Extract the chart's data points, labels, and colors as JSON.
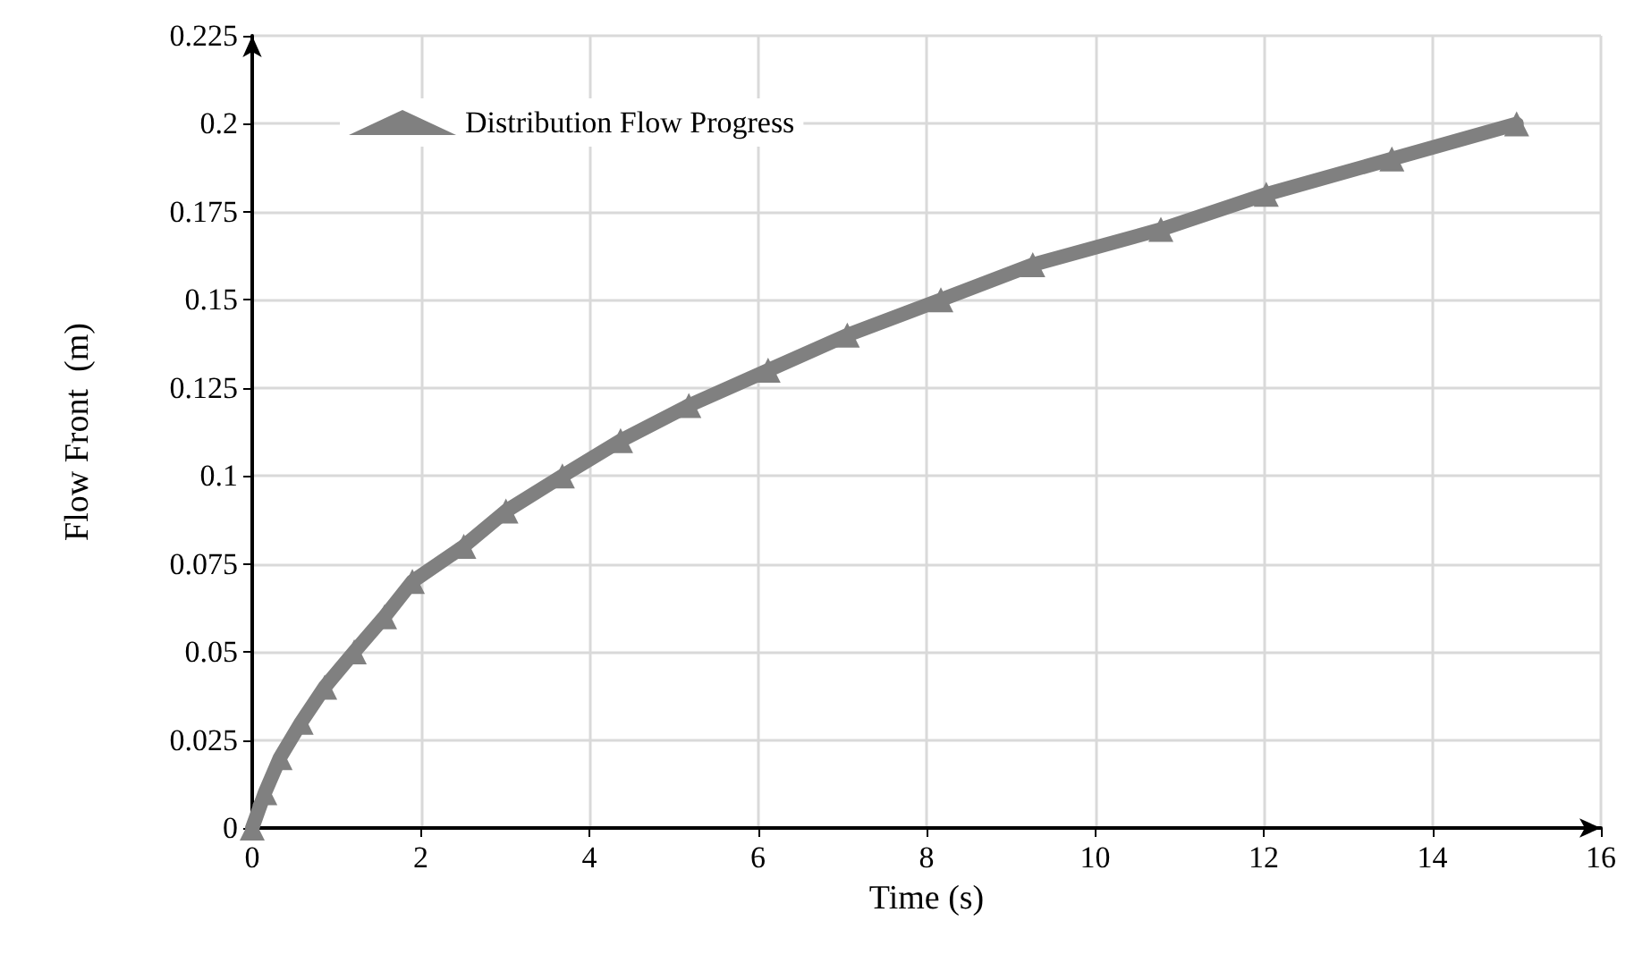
{
  "chart_data": {
    "type": "line",
    "xlabel": "Time (s)",
    "ylabel": "Flow Front  (m)",
    "series": [
      {
        "name": "Distribution Flow Progress",
        "color": "#808080",
        "x": [
          0,
          0.15,
          0.33,
          0.58,
          0.86,
          1.21,
          1.57,
          1.9,
          2.51,
          3.01,
          3.68,
          4.37,
          5.18,
          6.12,
          7.06,
          8.17,
          9.26,
          10.78,
          12.03,
          13.52,
          15
        ],
        "values": [
          0,
          0.01,
          0.02,
          0.03,
          0.04,
          0.05,
          0.06,
          0.07,
          0.08,
          0.09,
          0.1,
          0.11,
          0.12,
          0.13,
          0.14,
          0.15,
          0.16,
          0.17,
          0.18,
          0.19,
          0.2
        ]
      }
    ],
    "xlim": [
      0,
      16
    ],
    "xticks": [
      0,
      2,
      4,
      6,
      8,
      10,
      12,
      14,
      16
    ],
    "ylim": [
      0,
      0.225
    ],
    "yticks": [
      0,
      0.025,
      0.05,
      0.075,
      0.1,
      0.125,
      0.15,
      0.175,
      0.2,
      0.225
    ],
    "grid": true,
    "legend": "top left",
    "marker": "triangle",
    "line_style": "solid"
  }
}
